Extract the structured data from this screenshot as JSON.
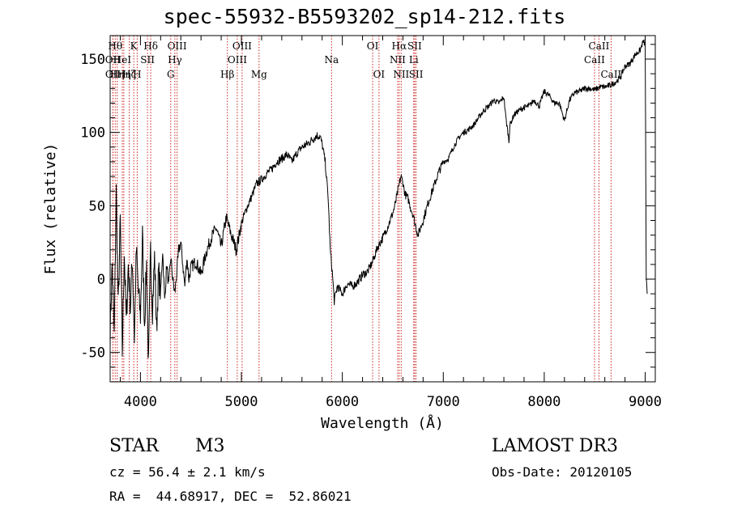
{
  "chart_data": {
    "type": "line",
    "title": "spec-55932-B5593202_sp14-212.fits",
    "xlabel": "Wavelength (Å)",
    "ylabel": "Flux (relative)",
    "xlim": [
      3700,
      9100
    ],
    "ylim": [
      -70,
      166
    ],
    "xticks": [
      4000,
      5000,
      6000,
      7000,
      8000,
      9000
    ],
    "yticks": [
      -50,
      0,
      50,
      100,
      150
    ],
    "series": [
      {
        "name": "flux",
        "x": [
          3700,
          3720,
          3740,
          3760,
          3780,
          3800,
          3820,
          3840,
          3860,
          3880,
          3900,
          3920,
          3940,
          3960,
          3980,
          4000,
          4020,
          4040,
          4060,
          4080,
          4100,
          4120,
          4140,
          4160,
          4180,
          4200,
          4220,
          4240,
          4260,
          4280,
          4300,
          4320,
          4340,
          4360,
          4380,
          4400,
          4420,
          4440,
          4460,
          4480,
          4500,
          4550,
          4600,
          4650,
          4700,
          4750,
          4800,
          4850,
          4900,
          4950,
          5000,
          5050,
          5100,
          5150,
          5200,
          5250,
          5300,
          5350,
          5400,
          5450,
          5500,
          5550,
          5600,
          5650,
          5700,
          5750,
          5780,
          5800,
          5830,
          5860,
          5880,
          5900,
          5920,
          5950,
          5980,
          6000,
          6050,
          6100,
          6150,
          6200,
          6250,
          6300,
          6350,
          6400,
          6450,
          6500,
          6520,
          6550,
          6580,
          6600,
          6620,
          6650,
          6680,
          6700,
          6720,
          6750,
          6800,
          6850,
          6900,
          6950,
          7000,
          7050,
          7100,
          7150,
          7200,
          7250,
          7300,
          7350,
          7400,
          7450,
          7500,
          7550,
          7600,
          7620,
          7640,
          7650,
          7660,
          7700,
          7750,
          7800,
          7850,
          7900,
          7950,
          8000,
          8050,
          8100,
          8150,
          8200,
          8250,
          8300,
          8350,
          8400,
          8450,
          8500,
          8550,
          8600,
          8650,
          8700,
          8750,
          8800,
          8850,
          8900,
          8950,
          8980,
          9000,
          9010,
          9020
        ],
        "y": [
          -35,
          10,
          -40,
          60,
          -20,
          40,
          -50,
          20,
          -30,
          10,
          -20,
          15,
          -40,
          20,
          -10,
          -25,
          30,
          -30,
          10,
          -60,
          20,
          -20,
          15,
          -35,
          5,
          -10,
          20,
          -15,
          10,
          -5,
          15,
          0,
          -10,
          5,
          20,
          25,
          10,
          -5,
          15,
          0,
          8,
          12,
          3,
          18,
          28,
          35,
          22,
          42,
          30,
          20,
          38,
          48,
          56,
          65,
          68,
          72,
          75,
          80,
          82,
          85,
          80,
          86,
          90,
          92,
          95,
          98,
          97,
          92,
          80,
          55,
          20,
          5,
          -15,
          -5,
          -8,
          -10,
          -3,
          -5,
          -2,
          3,
          5,
          12,
          22,
          28,
          36,
          45,
          50,
          60,
          70,
          66,
          58,
          55,
          48,
          44,
          38,
          30,
          40,
          52,
          62,
          72,
          80,
          82,
          90,
          96,
          100,
          102,
          105,
          110,
          115,
          118,
          122,
          120,
          124,
          110,
          100,
          94,
          105,
          112,
          115,
          117,
          118,
          122,
          118,
          128,
          125,
          120,
          120,
          108,
          122,
          127,
          128,
          130,
          130,
          129,
          131,
          131,
          132,
          134,
          137,
          145,
          147,
          153,
          156,
          162,
          160,
          0,
          -10
        ]
      }
    ],
    "lines": [
      {
        "x": 3750,
        "label": "Hθ",
        "row": 1
      },
      {
        "x": 3727,
        "label": "OII",
        "row": 2
      },
      {
        "x": 3728,
        "label": "OII",
        "row": 3
      },
      {
        "x": 3770,
        "label": "Hη",
        "row": 3
      },
      {
        "x": 3820,
        "label": "HeI",
        "row": 2
      },
      {
        "x": 3835,
        "label": "Hη",
        "row": 3
      },
      {
        "x": 3889,
        "label": "Hζ",
        "row": 3
      },
      {
        "x": 3934,
        "label": "K",
        "row": 1
      },
      {
        "x": 3968,
        "label": "H",
        "row": 3
      },
      {
        "x": 4070,
        "label": "SII",
        "row": 2
      },
      {
        "x": 4102,
        "label": "Hδ",
        "row": 1
      },
      {
        "x": 4300,
        "label": "G",
        "row": 3
      },
      {
        "x": 4341,
        "label": "Hγ",
        "row": 2
      },
      {
        "x": 4363,
        "label": "OIII",
        "row": 1
      },
      {
        "x": 4861,
        "label": "Hβ",
        "row": 3
      },
      {
        "x": 4959,
        "label": "OIII",
        "row": 2
      },
      {
        "x": 5007,
        "label": "OIII",
        "row": 1
      },
      {
        "x": 5175,
        "label": "Mg",
        "row": 3
      },
      {
        "x": 5893,
        "label": "Na",
        "row": 2
      },
      {
        "x": 6300,
        "label": "OI",
        "row": 1
      },
      {
        "x": 6363,
        "label": "OI",
        "row": 3
      },
      {
        "x": 6548,
        "label": "NII",
        "row": 2
      },
      {
        "x": 6563,
        "label": "Hα",
        "row": 1
      },
      {
        "x": 6583,
        "label": "NII",
        "row": 3
      },
      {
        "x": 6707,
        "label": "Li",
        "row": 2
      },
      {
        "x": 6716,
        "label": "SII",
        "row": 1
      },
      {
        "x": 6730,
        "label": "SII",
        "row": 3
      },
      {
        "x": 8498,
        "label": "CaII",
        "row": 2
      },
      {
        "x": 8542,
        "label": "CaII",
        "row": 1
      },
      {
        "x": 8662,
        "label": "CaII",
        "row": 3
      }
    ]
  },
  "info": {
    "object_class": "STAR",
    "subclass": "M3",
    "survey": "LAMOST DR3",
    "cz": "cz = 56.4 ± 2.1 km/s",
    "obs_date": "Obs-Date: 20120105",
    "coords": "RA =  44.68917, DEC =  52.86021"
  },
  "colors": {
    "spectrum": "#000000",
    "lines": "#cc2222"
  }
}
